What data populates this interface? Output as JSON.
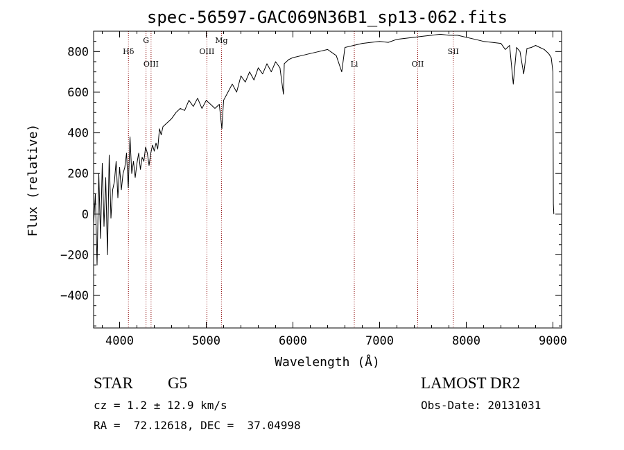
{
  "chart_data": {
    "type": "line",
    "title": "spec-56597-GAC069N36B1_sp13-062.fits",
    "xlabel": "Wavelength (Å)",
    "ylabel": "Flux (relative)",
    "xlim": [
      3700,
      9100
    ],
    "ylim": [
      -560,
      900
    ],
    "x_ticks": [
      4000,
      5000,
      6000,
      7000,
      8000,
      9000
    ],
    "y_ticks": [
      -400,
      -200,
      0,
      200,
      400,
      600,
      800
    ],
    "x_tick_labels": [
      "4000",
      "5000",
      "6000",
      "7000",
      "8000",
      "9000"
    ],
    "y_tick_labels": [
      "−400",
      "−200",
      "0",
      "200",
      "400",
      "600",
      "800"
    ],
    "grid": false,
    "line_color": "#000000",
    "marker_color": "#8b0000",
    "series": [
      {
        "x": [
          3700,
          3720,
          3740,
          3760,
          3780,
          3800,
          3820,
          3840,
          3860,
          3880,
          3900,
          3920,
          3940,
          3960,
          3980,
          4000,
          4020,
          4040,
          4060,
          4080,
          4100,
          4120,
          4140,
          4160,
          4180,
          4200,
          4220,
          4240,
          4260,
          4280,
          4300,
          4320,
          4340,
          4360,
          4380,
          4400,
          4420,
          4440,
          4460,
          4480,
          4500,
          4550,
          4600,
          4650,
          4700,
          4750,
          4800,
          4850,
          4900,
          4950,
          5000,
          5050,
          5100,
          5150,
          5180,
          5200,
          5250,
          5300,
          5350,
          5400,
          5450,
          5500,
          5550,
          5600,
          5650,
          5700,
          5750,
          5800,
          5850,
          5890,
          5900,
          5950,
          6000,
          6100,
          6200,
          6300,
          6400,
          6500,
          6563,
          6600,
          6700,
          6800,
          6900,
          7000,
          7100,
          7200,
          7300,
          7400,
          7500,
          7600,
          7700,
          7800,
          7900,
          8000,
          8100,
          8200,
          8300,
          8400,
          8450,
          8500,
          8542,
          8580,
          8620,
          8662,
          8700,
          8750,
          8800,
          8850,
          8900,
          8950,
          8980,
          9000,
          9005,
          9010
        ],
        "y": [
          -50,
          100,
          -250,
          200,
          -120,
          250,
          -60,
          180,
          -200,
          290,
          -20,
          120,
          160,
          260,
          80,
          230,
          120,
          200,
          230,
          300,
          130,
          380,
          200,
          260,
          180,
          250,
          300,
          220,
          280,
          260,
          330,
          300,
          240,
          300,
          340,
          310,
          350,
          320,
          420,
          390,
          430,
          450,
          470,
          500,
          520,
          510,
          560,
          530,
          570,
          520,
          560,
          540,
          520,
          540,
          420,
          560,
          600,
          640,
          600,
          680,
          650,
          700,
          660,
          720,
          690,
          740,
          700,
          750,
          720,
          590,
          740,
          760,
          770,
          780,
          790,
          800,
          810,
          780,
          700,
          820,
          830,
          840,
          845,
          850,
          845,
          860,
          865,
          870,
          875,
          880,
          885,
          880,
          880,
          870,
          860,
          850,
          845,
          840,
          810,
          830,
          640,
          820,
          800,
          690,
          815,
          820,
          830,
          820,
          810,
          790,
          770,
          700,
          50,
          0
        ]
      }
    ],
    "markers": [
      {
        "label": "Hδ",
        "x": 4102,
        "level": "upper"
      },
      {
        "label": "G",
        "x": 4305,
        "level": "top"
      },
      {
        "label": "OIII",
        "x": 4363,
        "level": "lower"
      },
      {
        "label": "OIII",
        "x": 5007,
        "level": "upper"
      },
      {
        "label": "Mg",
        "x": 5175,
        "level": "top"
      },
      {
        "label": "Li",
        "x": 6708,
        "level": "lower"
      },
      {
        "label": "OII",
        "x": 7440,
        "level": "lower"
      },
      {
        "label": "SII",
        "x": 7850,
        "level": "upper"
      }
    ]
  },
  "info": {
    "object_type": "STAR",
    "subclass": "G5",
    "survey": "LAMOST DR2",
    "redshift": "cz = 1.2 ± 12.9 km/s",
    "obs_date": "Obs-Date: 20131031",
    "coords": "RA =  72.12618, DEC =  37.04998"
  }
}
